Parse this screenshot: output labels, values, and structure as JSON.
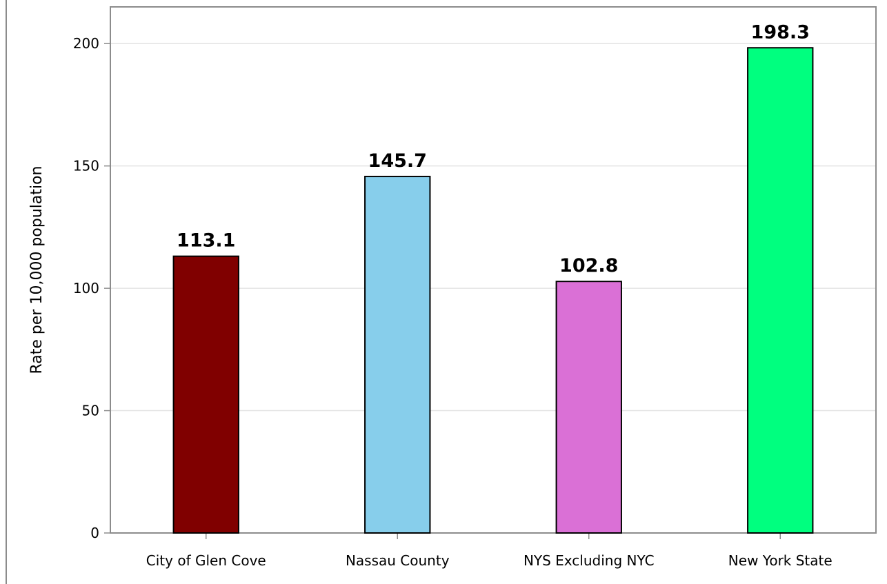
{
  "chart_data": {
    "type": "bar",
    "title": "",
    "xlabel": "",
    "ylabel": "Rate per 10,000 population",
    "ylim": [
      0,
      215
    ],
    "yticks": [
      0,
      50,
      100,
      150,
      200
    ],
    "grid": true,
    "categories": [
      "City of Glen Cove",
      "Nassau County",
      "NYS Excluding NYC",
      "New York State"
    ],
    "values": [
      113.1,
      145.7,
      102.8,
      198.3
    ],
    "value_labels": [
      "113.1",
      "145.7",
      "102.8",
      "198.3"
    ],
    "colors": [
      "#800000",
      "#87ceeb",
      "#da70d6",
      "#00ff7f"
    ]
  }
}
